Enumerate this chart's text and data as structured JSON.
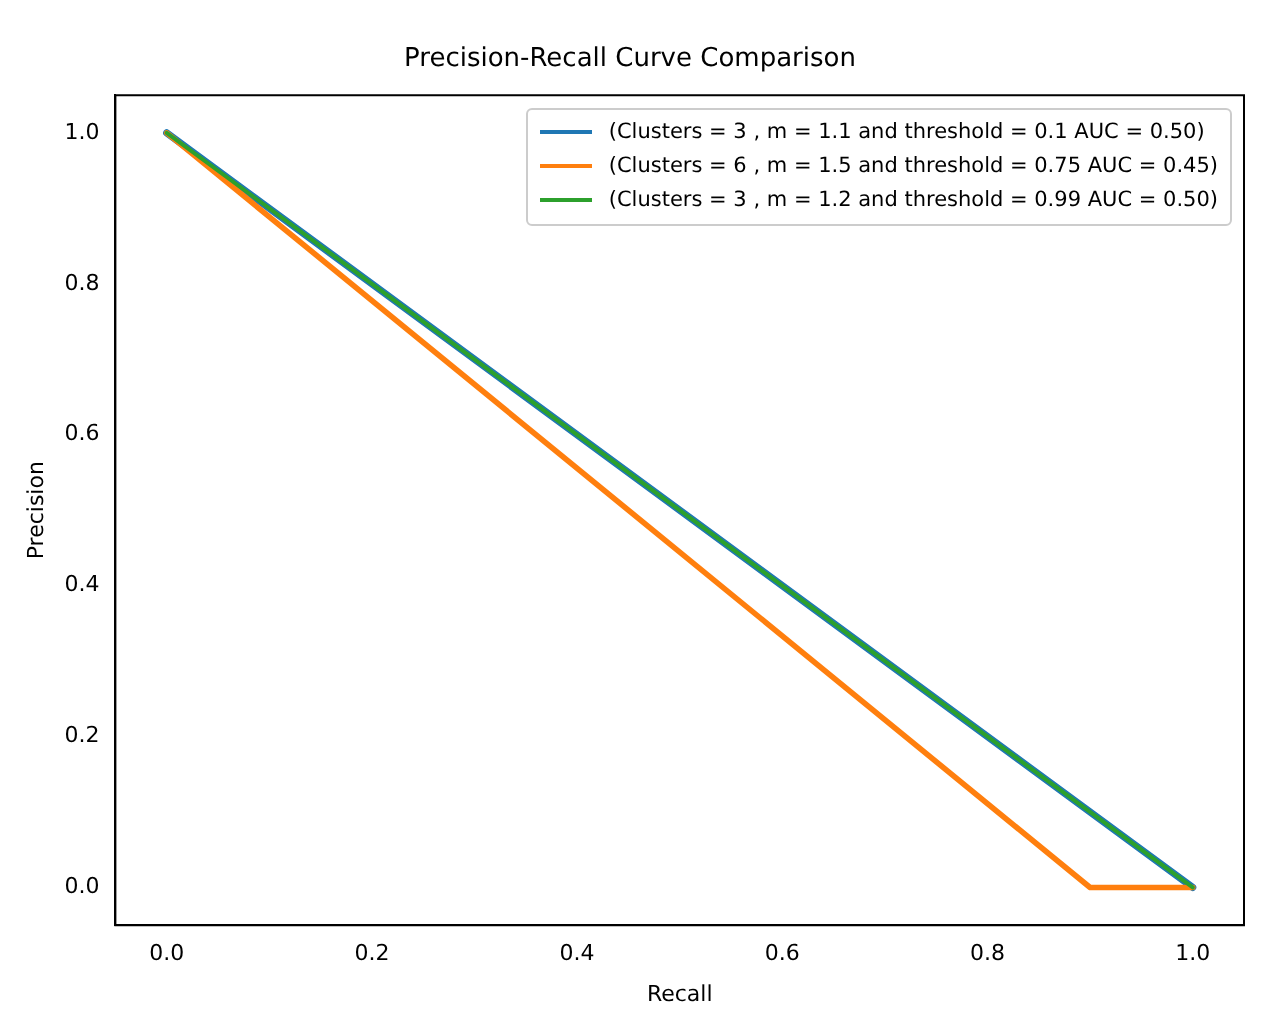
{
  "chart_data": {
    "type": "line",
    "title": "Precision-Recall Curve Comparison",
    "xlabel": "Recall",
    "ylabel": "Precision",
    "xlim": [
      -0.05,
      1.05
    ],
    "xticks": [
      {
        "value": 0,
        "label": "0.0"
      },
      0.2,
      0.4,
      0.6,
      0.8,
      {
        "value": 1,
        "label": "1.0"
      }
    ],
    "ylim": [
      -0.05,
      1.05
    ],
    "yticks": [
      {
        "value": 0,
        "label": "0.0"
      },
      0.2,
      0.4,
      0.6,
      0.8,
      {
        "value": 1,
        "label": "1.0"
      }
    ],
    "grid": false,
    "legend": "top right",
    "marker": "none",
    "line_style": "solid",
    "series": [
      {
        "name": "(Clusters = 3 , m = 1.1 and threshold = 0.1 AUC = 0.50)",
        "color": "#1f77b4",
        "x": [
          0,
          1
        ],
        "values": [
          1,
          0
        ]
      },
      {
        "name": "(Clusters = 6 , m = 1.5 and threshold = 0.75 AUC = 0.45)",
        "color": "#ff7f0e",
        "x": [
          0,
          0.9,
          1
        ],
        "values": [
          1,
          0,
          0
        ]
      },
      {
        "name": "(Clusters = 3 , m = 1.2 and threshold = 0.99 AUC = 0.50)",
        "color": "#2ca02c",
        "x": [
          0,
          1
        ],
        "values": [
          1,
          0
        ]
      }
    ]
  }
}
